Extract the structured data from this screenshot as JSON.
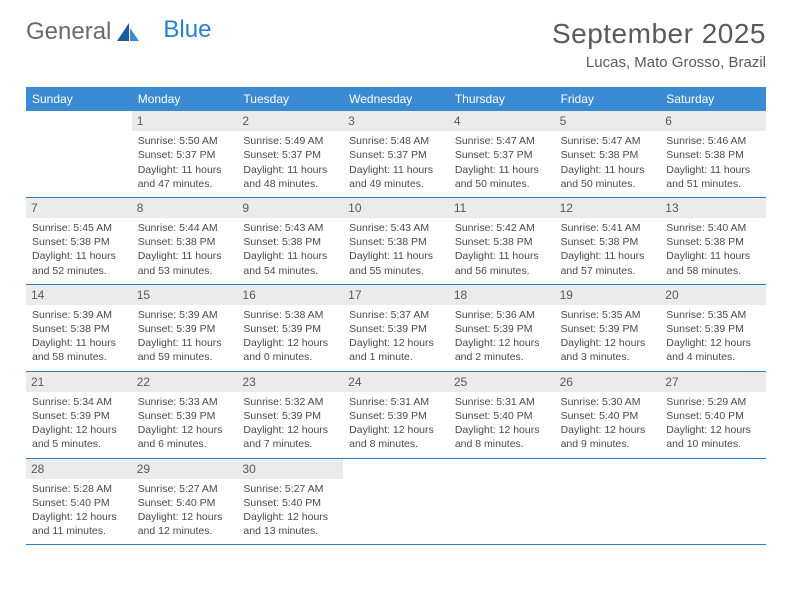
{
  "logo": {
    "text1": "General",
    "text2": "Blue"
  },
  "title": "September 2025",
  "location": "Lucas, Mato Grosso, Brazil",
  "colors": {
    "header_bg": "#3b8bd4",
    "header_text": "#ffffff",
    "daynum_bg": "#ebebeb",
    "border": "#2a7fc9",
    "text": "#4a4a4a",
    "logo_gray": "#6a6a6a",
    "logo_blue": "#2a7fc9"
  },
  "weekdays": [
    "Sunday",
    "Monday",
    "Tuesday",
    "Wednesday",
    "Thursday",
    "Friday",
    "Saturday"
  ],
  "weeks": [
    [
      null,
      {
        "n": "1",
        "sr": "5:50 AM",
        "ss": "5:37 PM",
        "dl": "11 hours and 47 minutes."
      },
      {
        "n": "2",
        "sr": "5:49 AM",
        "ss": "5:37 PM",
        "dl": "11 hours and 48 minutes."
      },
      {
        "n": "3",
        "sr": "5:48 AM",
        "ss": "5:37 PM",
        "dl": "11 hours and 49 minutes."
      },
      {
        "n": "4",
        "sr": "5:47 AM",
        "ss": "5:37 PM",
        "dl": "11 hours and 50 minutes."
      },
      {
        "n": "5",
        "sr": "5:47 AM",
        "ss": "5:38 PM",
        "dl": "11 hours and 50 minutes."
      },
      {
        "n": "6",
        "sr": "5:46 AM",
        "ss": "5:38 PM",
        "dl": "11 hours and 51 minutes."
      }
    ],
    [
      {
        "n": "7",
        "sr": "5:45 AM",
        "ss": "5:38 PM",
        "dl": "11 hours and 52 minutes."
      },
      {
        "n": "8",
        "sr": "5:44 AM",
        "ss": "5:38 PM",
        "dl": "11 hours and 53 minutes."
      },
      {
        "n": "9",
        "sr": "5:43 AM",
        "ss": "5:38 PM",
        "dl": "11 hours and 54 minutes."
      },
      {
        "n": "10",
        "sr": "5:43 AM",
        "ss": "5:38 PM",
        "dl": "11 hours and 55 minutes."
      },
      {
        "n": "11",
        "sr": "5:42 AM",
        "ss": "5:38 PM",
        "dl": "11 hours and 56 minutes."
      },
      {
        "n": "12",
        "sr": "5:41 AM",
        "ss": "5:38 PM",
        "dl": "11 hours and 57 minutes."
      },
      {
        "n": "13",
        "sr": "5:40 AM",
        "ss": "5:38 PM",
        "dl": "11 hours and 58 minutes."
      }
    ],
    [
      {
        "n": "14",
        "sr": "5:39 AM",
        "ss": "5:38 PM",
        "dl": "11 hours and 58 minutes."
      },
      {
        "n": "15",
        "sr": "5:39 AM",
        "ss": "5:39 PM",
        "dl": "11 hours and 59 minutes."
      },
      {
        "n": "16",
        "sr": "5:38 AM",
        "ss": "5:39 PM",
        "dl": "12 hours and 0 minutes."
      },
      {
        "n": "17",
        "sr": "5:37 AM",
        "ss": "5:39 PM",
        "dl": "12 hours and 1 minute."
      },
      {
        "n": "18",
        "sr": "5:36 AM",
        "ss": "5:39 PM",
        "dl": "12 hours and 2 minutes."
      },
      {
        "n": "19",
        "sr": "5:35 AM",
        "ss": "5:39 PM",
        "dl": "12 hours and 3 minutes."
      },
      {
        "n": "20",
        "sr": "5:35 AM",
        "ss": "5:39 PM",
        "dl": "12 hours and 4 minutes."
      }
    ],
    [
      {
        "n": "21",
        "sr": "5:34 AM",
        "ss": "5:39 PM",
        "dl": "12 hours and 5 minutes."
      },
      {
        "n": "22",
        "sr": "5:33 AM",
        "ss": "5:39 PM",
        "dl": "12 hours and 6 minutes."
      },
      {
        "n": "23",
        "sr": "5:32 AM",
        "ss": "5:39 PM",
        "dl": "12 hours and 7 minutes."
      },
      {
        "n": "24",
        "sr": "5:31 AM",
        "ss": "5:39 PM",
        "dl": "12 hours and 8 minutes."
      },
      {
        "n": "25",
        "sr": "5:31 AM",
        "ss": "5:40 PM",
        "dl": "12 hours and 8 minutes."
      },
      {
        "n": "26",
        "sr": "5:30 AM",
        "ss": "5:40 PM",
        "dl": "12 hours and 9 minutes."
      },
      {
        "n": "27",
        "sr": "5:29 AM",
        "ss": "5:40 PM",
        "dl": "12 hours and 10 minutes."
      }
    ],
    [
      {
        "n": "28",
        "sr": "5:28 AM",
        "ss": "5:40 PM",
        "dl": "12 hours and 11 minutes."
      },
      {
        "n": "29",
        "sr": "5:27 AM",
        "ss": "5:40 PM",
        "dl": "12 hours and 12 minutes."
      },
      {
        "n": "30",
        "sr": "5:27 AM",
        "ss": "5:40 PM",
        "dl": "12 hours and 13 minutes."
      },
      null,
      null,
      null,
      null
    ]
  ],
  "labels": {
    "sunrise": "Sunrise:",
    "sunset": "Sunset:",
    "daylight": "Daylight:"
  }
}
